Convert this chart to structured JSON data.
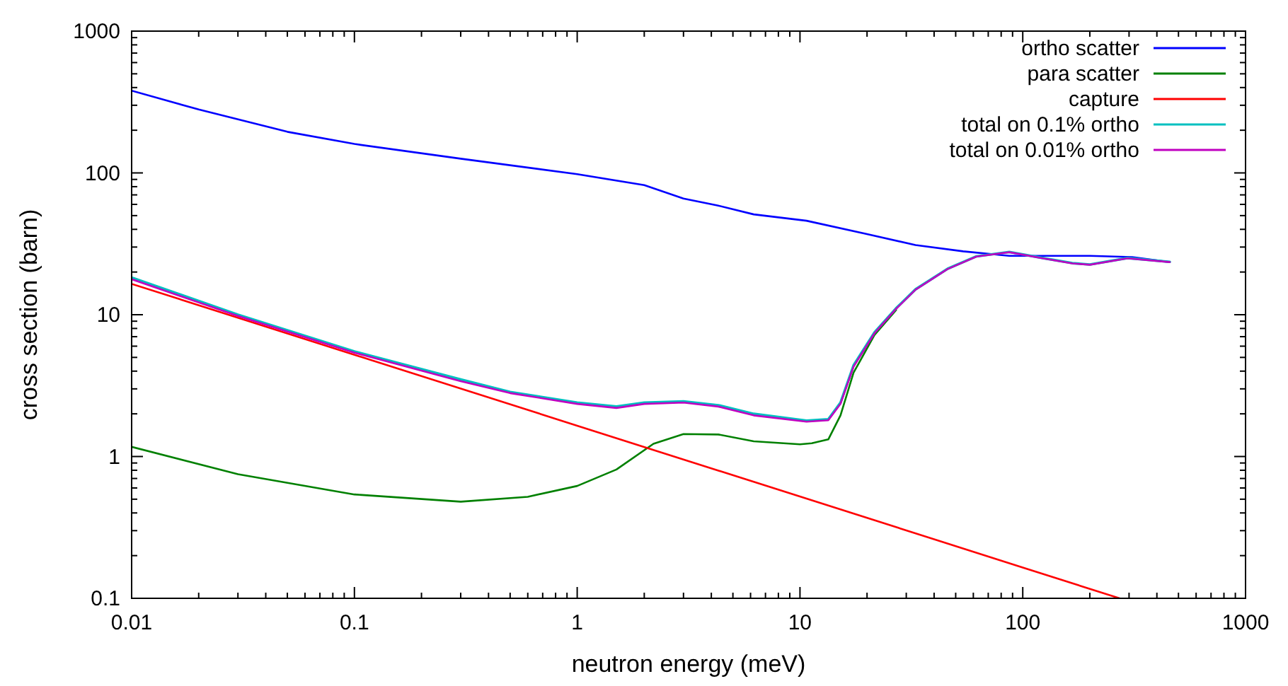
{
  "chart_data": {
    "type": "line",
    "xlabel": "neutron energy (meV)",
    "ylabel": "cross section (barn)",
    "log": "xy",
    "grid": false,
    "legend": "top right",
    "marker": "none",
    "line_style": "solid",
    "xlim": [
      0.01,
      1000
    ],
    "ylim": [
      0.1,
      1000
    ],
    "xticks": [
      {
        "value": 0.01,
        "label": "0.01"
      },
      {
        "value": 0.02,
        "label": null
      },
      {
        "value": 0.03,
        "label": null
      },
      {
        "value": 0.04,
        "label": null
      },
      {
        "value": 0.05,
        "label": null
      },
      {
        "value": 0.06,
        "label": null
      },
      {
        "value": 0.07,
        "label": null
      },
      {
        "value": 0.08,
        "label": null
      },
      {
        "value": 0.09,
        "label": null
      },
      {
        "value": 0.1,
        "label": "0.1"
      },
      {
        "value": 0.2,
        "label": null
      },
      {
        "value": 0.3,
        "label": null
      },
      {
        "value": 0.4,
        "label": null
      },
      {
        "value": 0.5,
        "label": null
      },
      {
        "value": 0.6,
        "label": null
      },
      {
        "value": 0.7,
        "label": null
      },
      {
        "value": 0.8,
        "label": null
      },
      {
        "value": 0.9,
        "label": null
      },
      1,
      {
        "value": 2,
        "label": null
      },
      {
        "value": 3,
        "label": null
      },
      {
        "value": 4,
        "label": null
      },
      {
        "value": 5,
        "label": null
      },
      {
        "value": 6,
        "label": null
      },
      {
        "value": 7,
        "label": null
      },
      {
        "value": 8,
        "label": null
      },
      {
        "value": 9,
        "label": null
      },
      10,
      {
        "value": 20,
        "label": null
      },
      {
        "value": 30,
        "label": null
      },
      {
        "value": 40,
        "label": null
      },
      {
        "value": 50,
        "label": null
      },
      {
        "value": 60,
        "label": null
      },
      {
        "value": 70,
        "label": null
      },
      {
        "value": 80,
        "label": null
      },
      {
        "value": 90,
        "label": null
      },
      100,
      {
        "value": 200,
        "label": null
      },
      {
        "value": 300,
        "label": null
      },
      {
        "value": 400,
        "label": null
      },
      {
        "value": 500,
        "label": null
      },
      {
        "value": 600,
        "label": null
      },
      {
        "value": 700,
        "label": null
      },
      {
        "value": 800,
        "label": null
      },
      {
        "value": 900,
        "label": null
      },
      1000
    ],
    "yticks": [
      {
        "value": 0.1,
        "label": "0.1"
      },
      {
        "value": 0.2,
        "label": null
      },
      {
        "value": 0.3,
        "label": null
      },
      {
        "value": 0.4,
        "label": null
      },
      {
        "value": 0.5,
        "label": null
      },
      {
        "value": 0.6,
        "label": null
      },
      {
        "value": 0.7,
        "label": null
      },
      {
        "value": 0.8,
        "label": null
      },
      {
        "value": 0.9,
        "label": null
      },
      1,
      {
        "value": 2,
        "label": null
      },
      {
        "value": 3,
        "label": null
      },
      {
        "value": 4,
        "label": null
      },
      {
        "value": 5,
        "label": null
      },
      {
        "value": 6,
        "label": null
      },
      {
        "value": 7,
        "label": null
      },
      {
        "value": 8,
        "label": null
      },
      {
        "value": 9,
        "label": null
      },
      10,
      {
        "value": 20,
        "label": null
      },
      {
        "value": 30,
        "label": null
      },
      {
        "value": 40,
        "label": null
      },
      {
        "value": 50,
        "label": null
      },
      {
        "value": 60,
        "label": null
      },
      {
        "value": 70,
        "label": null
      },
      {
        "value": 80,
        "label": null
      },
      {
        "value": 90,
        "label": null
      },
      100,
      {
        "value": 200,
        "label": null
      },
      {
        "value": 300,
        "label": null
      },
      {
        "value": 400,
        "label": null
      },
      {
        "value": 500,
        "label": null
      },
      {
        "value": 600,
        "label": null
      },
      {
        "value": 700,
        "label": null
      },
      {
        "value": 800,
        "label": null
      },
      {
        "value": 900,
        "label": null
      },
      1000
    ],
    "series": [
      {
        "name": "ortho scatter",
        "color": "#0000ff",
        "x": [
          0.01,
          0.02,
          0.05,
          0.1,
          0.3,
          1,
          2,
          3,
          4.26,
          6.2,
          10.7,
          20,
          33,
          54,
          87,
          200,
          310,
          457
        ],
        "values": [
          380,
          280,
          195,
          160,
          126,
          98,
          82,
          66,
          59,
          51,
          46,
          37,
          31,
          28,
          26,
          26,
          25.5,
          23.5
        ]
      },
      {
        "name": "para scatter",
        "color": "#008000",
        "x": [
          0.01,
          0.03,
          0.1,
          0.3,
          0.6,
          1,
          1.5,
          2.2,
          3,
          4.3,
          6.2,
          10,
          11.3,
          13.4,
          15.2,
          17.4,
          21.6,
          27
        ],
        "values": [
          1.17,
          0.75,
          0.54,
          0.48,
          0.52,
          0.62,
          0.81,
          1.23,
          1.44,
          1.43,
          1.28,
          1.22,
          1.24,
          1.32,
          1.95,
          3.9,
          7.2,
          10.8
        ]
      },
      {
        "name": "capture",
        "color": "#ff0000",
        "x": [
          0.01,
          1,
          100,
          272
        ],
        "values": [
          16.5,
          1.65,
          0.165,
          0.1
        ]
      },
      {
        "name": "total on 0.1% ortho",
        "color": "#00c0c0",
        "x": [
          0.01,
          0.03,
          0.1,
          0.3,
          0.5,
          1,
          1.5,
          2,
          3,
          4.3,
          6.2,
          10.7,
          13.4,
          15.2,
          17.4,
          21.6,
          27,
          33,
          46,
          62,
          87,
          123,
          167,
          200,
          295,
          457
        ],
        "values": [
          18.3,
          10,
          5.5,
          3.5,
          2.85,
          2.4,
          2.25,
          2.4,
          2.45,
          2.3,
          2,
          1.79,
          1.83,
          2.4,
          4.4,
          7.5,
          11.1,
          15.1,
          21.1,
          25.8,
          27.7,
          25.1,
          23.1,
          22.6,
          25.1,
          23.6
        ]
      },
      {
        "name": "total on 0.01% ortho",
        "color": "#c000c0",
        "x": [
          0.01,
          0.03,
          0.1,
          0.3,
          0.5,
          1,
          1.5,
          2,
          3,
          4.3,
          6.2,
          10.7,
          13.4,
          15.2,
          17.4,
          21.6,
          27,
          33,
          46,
          62,
          87,
          123,
          167,
          200,
          295,
          457
        ],
        "values": [
          17.8,
          9.8,
          5.4,
          3.4,
          2.8,
          2.35,
          2.2,
          2.35,
          2.4,
          2.25,
          1.95,
          1.76,
          1.8,
          2.35,
          4.3,
          7.4,
          11,
          15,
          21,
          25.7,
          27.6,
          25,
          23,
          22.5,
          25,
          23.5
        ]
      }
    ]
  }
}
